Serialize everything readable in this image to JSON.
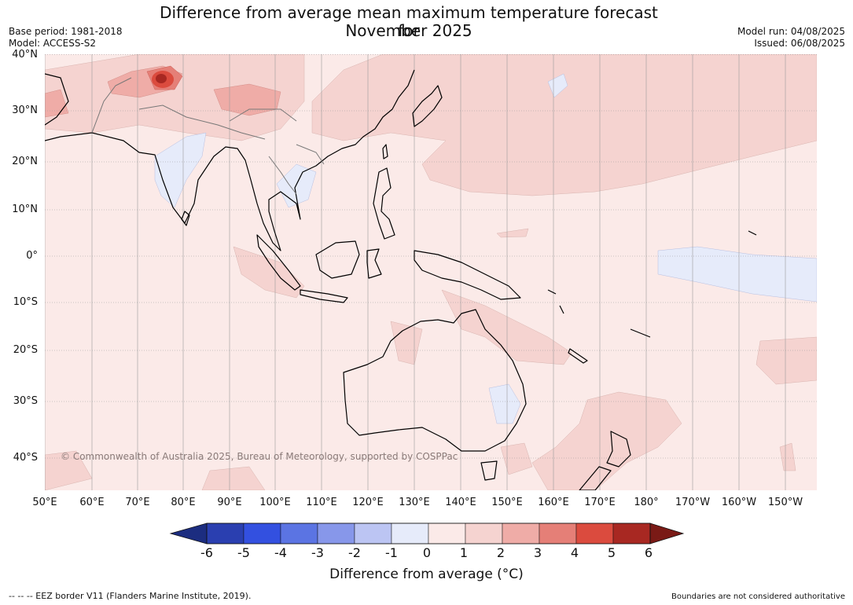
{
  "header": {
    "title_line1": "Difference from average mean maximum temperature forecast for",
    "title_line2": "November 2025",
    "base_period": "Base period: 1981-2018",
    "model": "Model: ACCESS-S2",
    "model_run": "Model run: 04/08/2025",
    "issued": "Issued: 06/08/2025"
  },
  "map": {
    "copyright": "© Commonwealth of Australia 2025, Bureau of Meteorology, supported by COSPPac",
    "lat_labels": [
      "40°N",
      "30°N",
      "20°N",
      "10°N",
      "0°",
      "10°S",
      "20°S",
      "30°S",
      "40°S"
    ],
    "lon_labels": [
      "50°E",
      "60°E",
      "70°E",
      "80°E",
      "90°E",
      "100°E",
      "110°E",
      "120°E",
      "130°E",
      "140°E",
      "150°E",
      "160°E",
      "170°E",
      "180°",
      "170°W",
      "160°W",
      "150°W"
    ]
  },
  "colorbar": {
    "ticks": [
      "-6",
      "-5",
      "-4",
      "-3",
      "-2",
      "-1",
      "0",
      "1",
      "2",
      "3",
      "4",
      "5",
      "6"
    ],
    "colors": [
      "#2a3fb0",
      "#3350e0",
      "#5b74e3",
      "#8797ea",
      "#bcc5f3",
      "#e6ebfa",
      "#fbeae8",
      "#f5d3d0",
      "#efaca7",
      "#e57f77",
      "#db4b3e",
      "#a82822"
    ],
    "low_extend_color": "#1c2d80",
    "high_extend_color": "#7a1a16",
    "label": "Difference from average (°C)"
  },
  "footer": {
    "eez_note": "--  --  -- EEZ border V11 (Flanders Marine Institute, 2019).",
    "disclaimer": "Boundaries are not considered authoritative"
  }
}
